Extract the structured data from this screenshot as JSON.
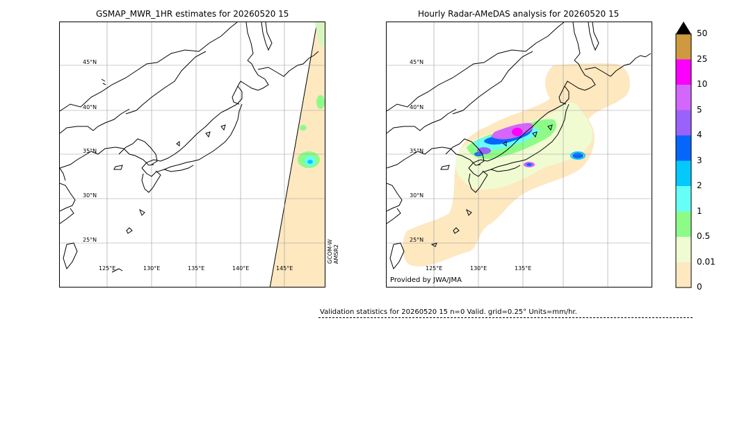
{
  "panel1": {
    "title": "GSMAP_MWR_1HR estimates for 20260520 15",
    "lat_labels": [
      "45°N",
      "40°N",
      "35°N",
      "30°N",
      "25°N"
    ],
    "lon_labels": [
      "125°E",
      "130°E",
      "135°E",
      "140°E",
      "145°E"
    ],
    "satellite": "GCOM-W\nAMSR2"
  },
  "panel2": {
    "title": "Hourly Radar-AMeDAS analysis for 20260520 15",
    "lat_labels": [
      "45°N",
      "40°N",
      "35°N",
      "30°N",
      "25°N"
    ],
    "lon_labels": [
      "125°E",
      "130°E",
      "135°E"
    ],
    "credit": "Provided by JWA/JMA"
  },
  "colorbar": {
    "levels": [
      "0",
      "0.01",
      "0.5",
      "1",
      "2",
      "3",
      "4",
      "5",
      "10",
      "25",
      "50"
    ],
    "colors": [
      "#fde8c0",
      "#f0fbd2",
      "#8dfb88",
      "#66fff8",
      "#05c8fb",
      "#0566fb",
      "#9a62fb",
      "#d466fb",
      "#fb00fb",
      "#cf9940"
    ],
    "extend_color": "#000000"
  },
  "validation": {
    "text": "Validation statistics for 20260520 15  n=0 Valid. grid=0.25° Units=mm/hr."
  }
}
